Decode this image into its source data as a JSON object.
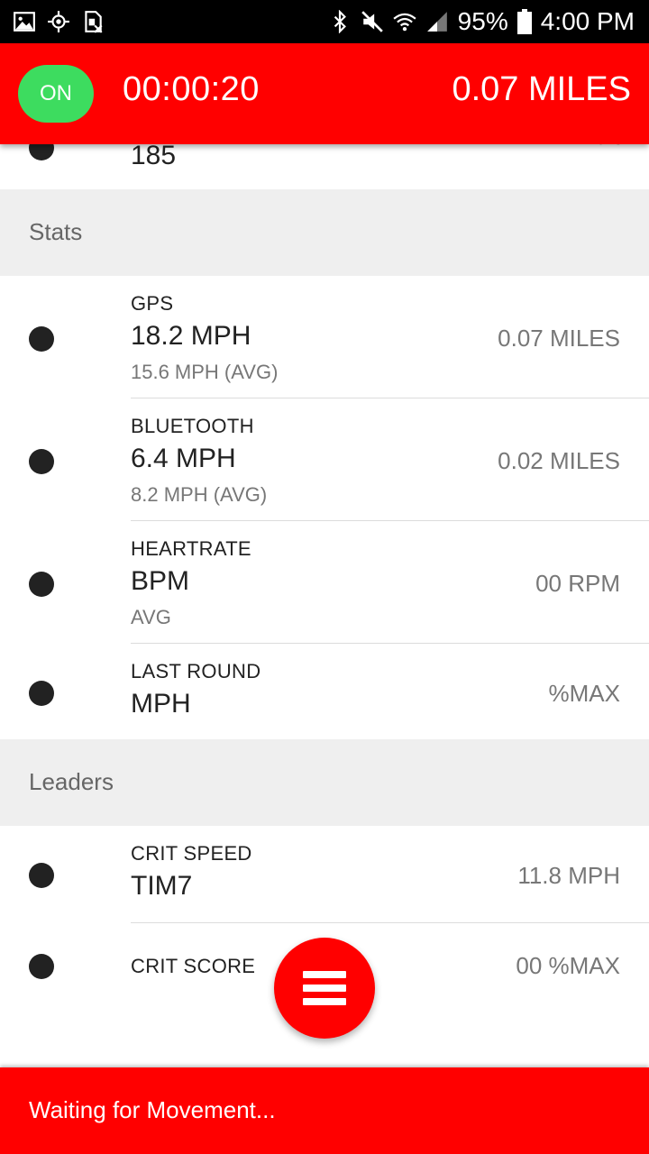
{
  "status_bar": {
    "battery": "95%",
    "time": "4:00 PM",
    "icons_left": [
      "image-icon",
      "location-icon",
      "sim-icon"
    ],
    "icons_right": [
      "bluetooth-icon",
      "mute-icon",
      "wifi-icon",
      "signal-icon",
      "battery-icon"
    ]
  },
  "header": {
    "toggle_label": "ON",
    "timer": "00:00:20",
    "distance": "0.07 MILES",
    "toggle_color": "#3ddc5f",
    "bar_color": "#ff0000"
  },
  "partial_row": {
    "value": "185",
    "action": "Edit"
  },
  "sections": {
    "stats": "Stats",
    "leaders": "Leaders"
  },
  "stats": [
    {
      "label": "GPS",
      "value": "18.2 MPH",
      "sub": "15.6 MPH (AVG)",
      "right": "0.07 MILES"
    },
    {
      "label": "BLUETOOTH",
      "value": "6.4 MPH",
      "sub": "8.2 MPH (AVG)",
      "right": "0.02 MILES"
    },
    {
      "label": "HEARTRATE",
      "value": "BPM",
      "sub": "AVG",
      "right": "00 RPM"
    },
    {
      "label": "LAST ROUND",
      "value": "MPH",
      "right": "%MAX"
    }
  ],
  "leaders": [
    {
      "label": "CRIT SPEED",
      "value": "TIM7",
      "right": "11.8 MPH"
    },
    {
      "label": "CRIT SCORE",
      "right": "00 %MAX"
    }
  ],
  "bottom_bar": {
    "status": "Waiting for Movement..."
  }
}
